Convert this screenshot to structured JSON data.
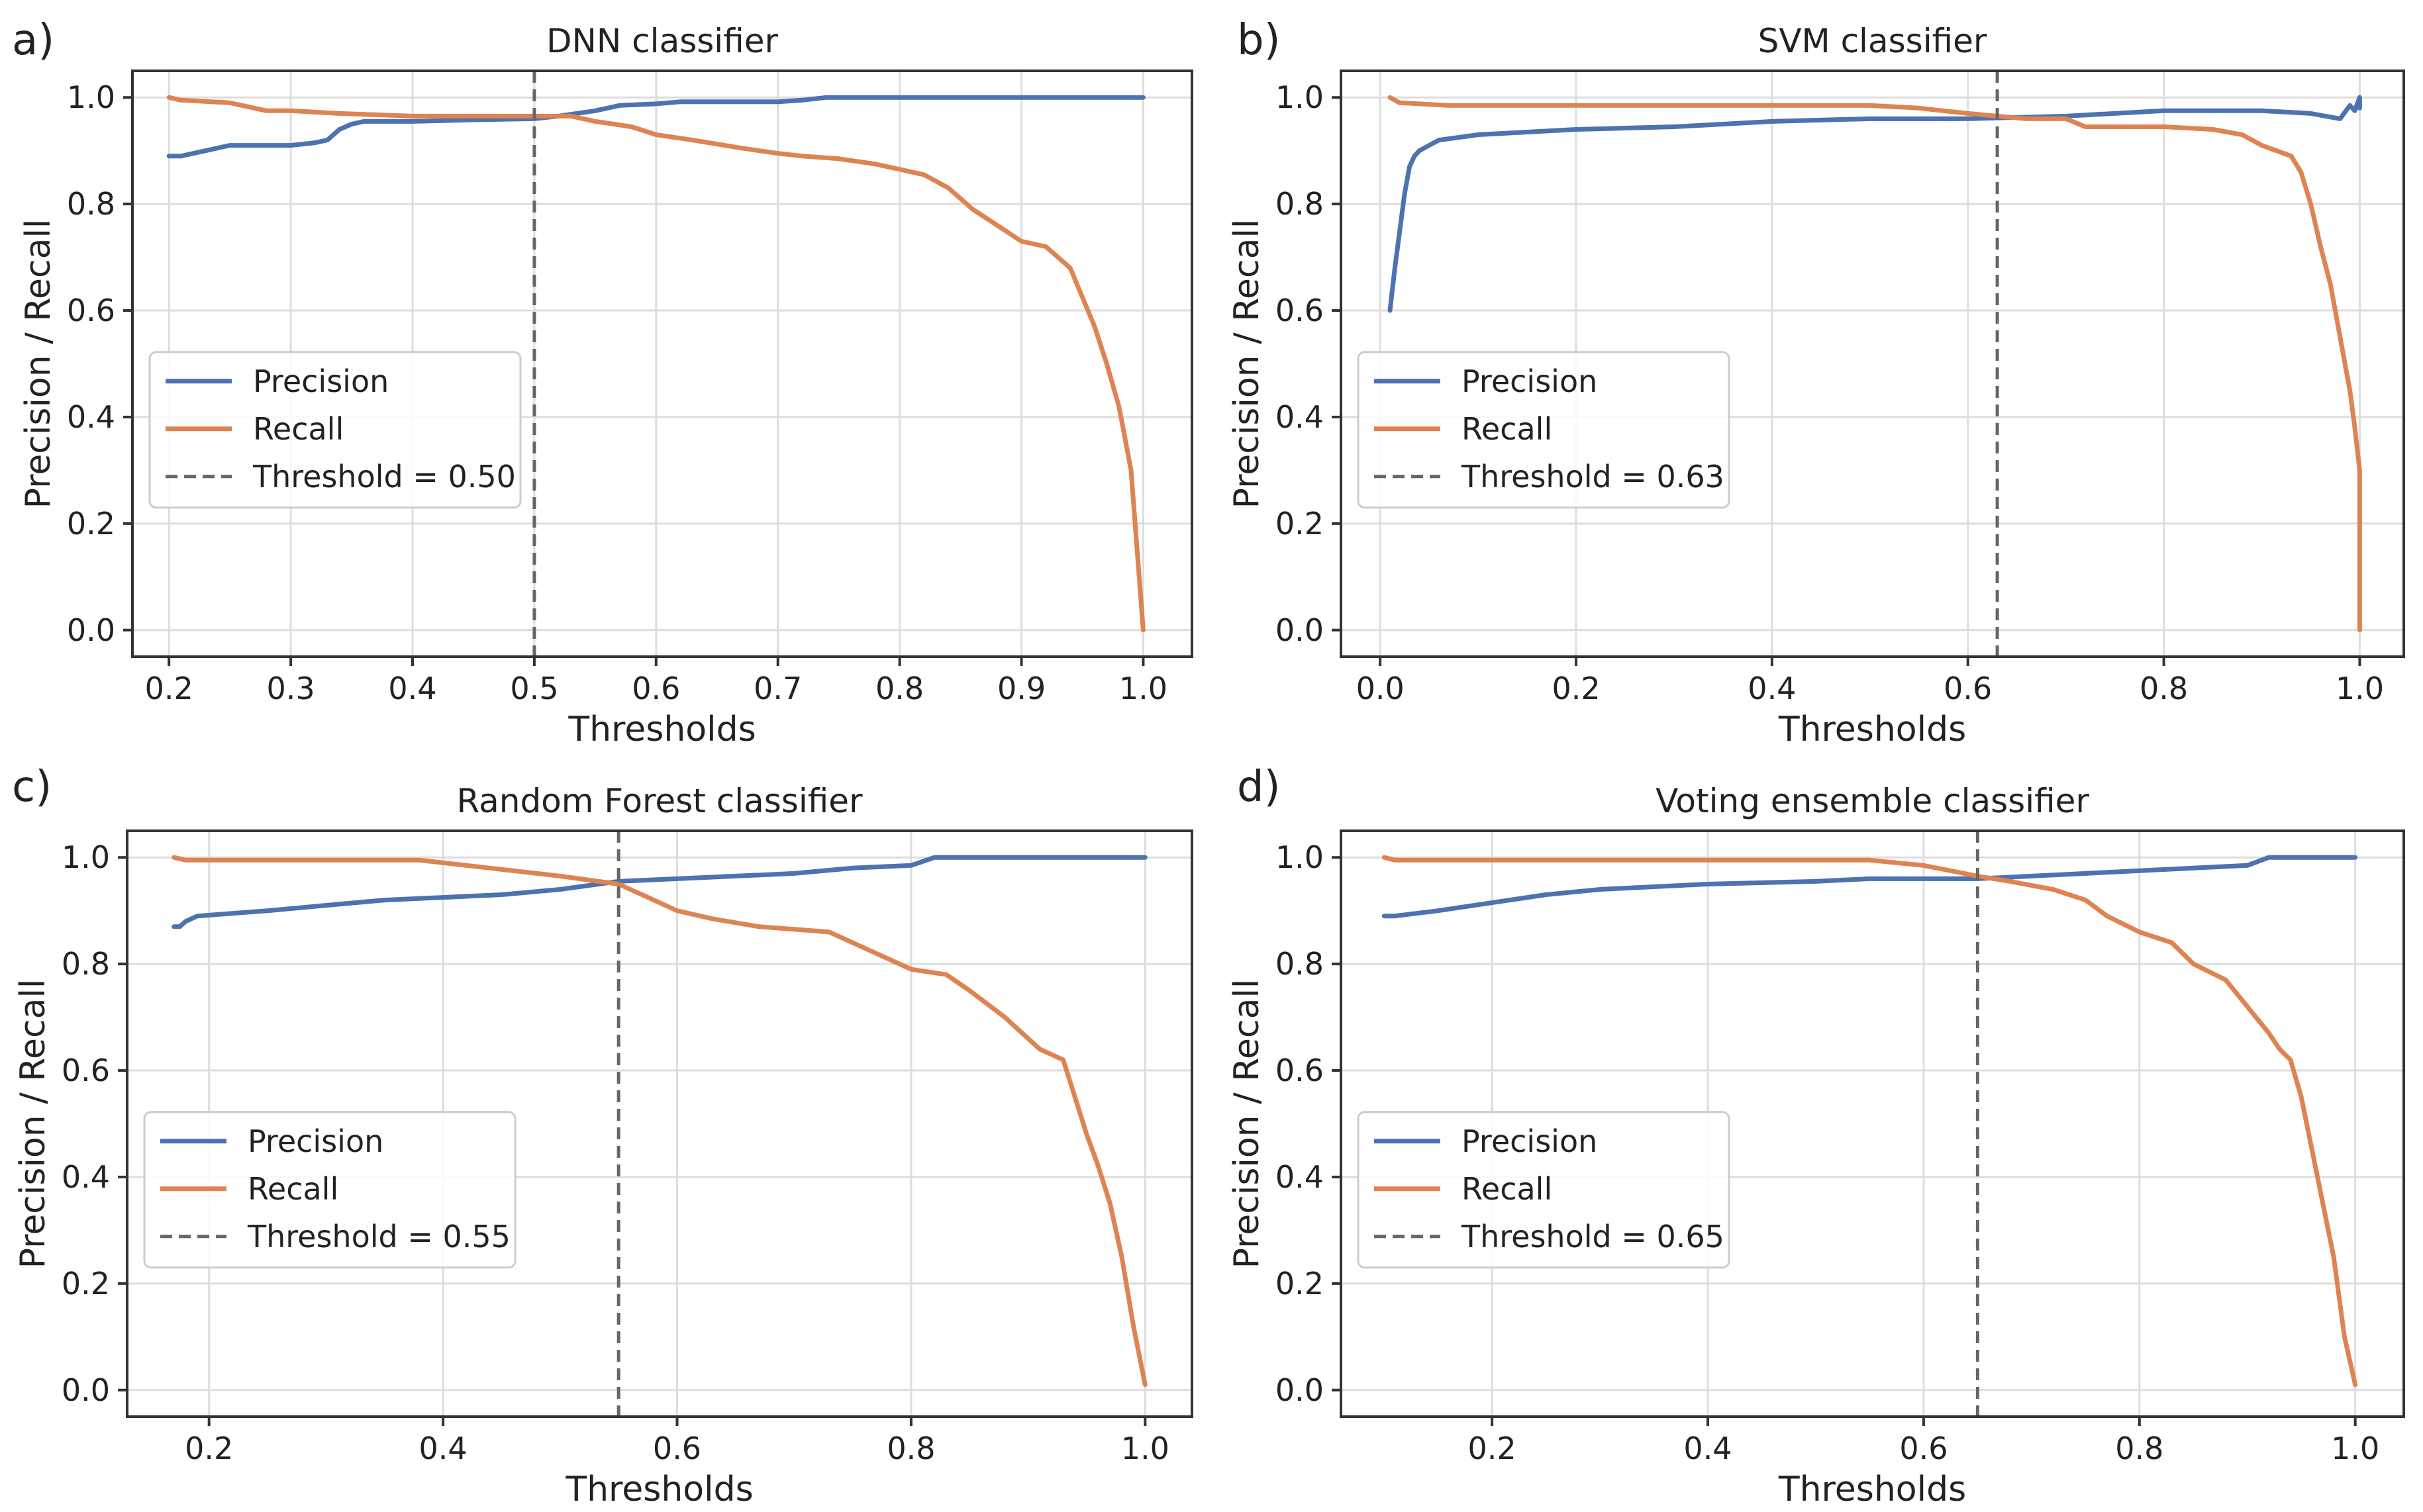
{
  "colors": {
    "precision": "#4c72b0",
    "recall": "#dd8452",
    "threshold": "#666666",
    "grid": "#dddddd",
    "frame": "#333333"
  },
  "chart_data": [
    {
      "panel_label": "a)",
      "type": "line",
      "title": "DNN classifier",
      "xlabel": "Thresholds",
      "ylabel": "Precision / Recall",
      "xlim": [
        0.17,
        1.04
      ],
      "ylim": [
        -0.05,
        1.05
      ],
      "xticks": [
        0.2,
        0.3,
        0.4,
        0.5,
        0.6,
        0.7,
        0.8,
        0.9,
        1.0
      ],
      "xtick_labels": [
        "0.2",
        "0.3",
        "0.4",
        "0.5",
        "0.6",
        "0.7",
        "0.8",
        "0.9",
        "1.0"
      ],
      "yticks": [
        0.0,
        0.2,
        0.4,
        0.6,
        0.8,
        1.0
      ],
      "ytick_labels": [
        "0.0",
        "0.2",
        "0.4",
        "0.6",
        "0.8",
        "1.0"
      ],
      "grid": true,
      "legend_position": "center-left",
      "threshold": {
        "value": 0.5,
        "label": "Threshold = 0.50"
      },
      "series": [
        {
          "name": "Precision",
          "x": [
            0.2,
            0.21,
            0.23,
            0.25,
            0.28,
            0.3,
            0.32,
            0.33,
            0.34,
            0.35,
            0.36,
            0.4,
            0.45,
            0.5,
            0.52,
            0.55,
            0.57,
            0.6,
            0.62,
            0.65,
            0.7,
            0.72,
            0.74,
            0.8,
            0.9,
            1.0
          ],
          "y": [
            0.89,
            0.89,
            0.9,
            0.91,
            0.91,
            0.91,
            0.915,
            0.92,
            0.94,
            0.95,
            0.955,
            0.955,
            0.958,
            0.96,
            0.965,
            0.975,
            0.985,
            0.988,
            0.992,
            0.992,
            0.992,
            0.995,
            1.0,
            1.0,
            1.0,
            1.0
          ]
        },
        {
          "name": "Recall",
          "x": [
            0.2,
            0.21,
            0.25,
            0.28,
            0.3,
            0.34,
            0.4,
            0.45,
            0.5,
            0.53,
            0.55,
            0.58,
            0.6,
            0.63,
            0.67,
            0.7,
            0.72,
            0.75,
            0.78,
            0.8,
            0.82,
            0.84,
            0.86,
            0.88,
            0.9,
            0.92,
            0.94,
            0.96,
            0.97,
            0.98,
            0.985,
            0.99,
            0.995,
            1.0
          ],
          "y": [
            1.0,
            0.995,
            0.99,
            0.975,
            0.975,
            0.97,
            0.965,
            0.965,
            0.965,
            0.965,
            0.955,
            0.945,
            0.93,
            0.92,
            0.905,
            0.895,
            0.89,
            0.885,
            0.875,
            0.865,
            0.855,
            0.83,
            0.79,
            0.76,
            0.73,
            0.72,
            0.68,
            0.57,
            0.5,
            0.42,
            0.36,
            0.3,
            0.15,
            0.0
          ]
        }
      ]
    },
    {
      "panel_label": "b)",
      "type": "line",
      "title": "SVM classifier",
      "xlabel": "Thresholds",
      "ylabel": "Precision / Recall",
      "xlim": [
        -0.04,
        1.045
      ],
      "ylim": [
        -0.05,
        1.05
      ],
      "xticks": [
        0.0,
        0.2,
        0.4,
        0.6,
        0.8,
        1.0
      ],
      "xtick_labels": [
        "0.0",
        "0.2",
        "0.4",
        "0.6",
        "0.8",
        "1.0"
      ],
      "yticks": [
        0.0,
        0.2,
        0.4,
        0.6,
        0.8,
        1.0
      ],
      "ytick_labels": [
        "0.0",
        "0.2",
        "0.4",
        "0.6",
        "0.8",
        "1.0"
      ],
      "grid": true,
      "legend_position": "center-left",
      "threshold": {
        "value": 0.63,
        "label": "Threshold = 0.63"
      },
      "series": [
        {
          "name": "Precision",
          "x": [
            0.01,
            0.015,
            0.02,
            0.025,
            0.03,
            0.035,
            0.04,
            0.05,
            0.06,
            0.08,
            0.1,
            0.15,
            0.2,
            0.3,
            0.4,
            0.5,
            0.6,
            0.7,
            0.8,
            0.9,
            0.95,
            0.98,
            0.99,
            0.995,
            1.0,
            1.0
          ],
          "y": [
            0.6,
            0.68,
            0.75,
            0.82,
            0.87,
            0.89,
            0.9,
            0.91,
            0.92,
            0.925,
            0.93,
            0.935,
            0.94,
            0.945,
            0.955,
            0.96,
            0.96,
            0.965,
            0.975,
            0.975,
            0.97,
            0.96,
            0.985,
            0.975,
            1.0,
            0.98
          ]
        },
        {
          "name": "Recall",
          "x": [
            0.01,
            0.02,
            0.07,
            0.1,
            0.2,
            0.4,
            0.5,
            0.55,
            0.6,
            0.63,
            0.66,
            0.7,
            0.72,
            0.8,
            0.85,
            0.88,
            0.9,
            0.93,
            0.94,
            0.95,
            0.96,
            0.97,
            0.98,
            0.99,
            0.995,
            1.0,
            1.0
          ],
          "y": [
            1.0,
            0.99,
            0.985,
            0.985,
            0.985,
            0.985,
            0.985,
            0.98,
            0.97,
            0.965,
            0.96,
            0.96,
            0.945,
            0.945,
            0.94,
            0.93,
            0.91,
            0.89,
            0.86,
            0.8,
            0.72,
            0.65,
            0.55,
            0.45,
            0.38,
            0.3,
            0.0
          ]
        }
      ]
    },
    {
      "panel_label": "c)",
      "type": "line",
      "title": "Random Forest classifier",
      "xlabel": "Thresholds",
      "ylabel": "Precision / Recall",
      "xlim": [
        0.13,
        1.04
      ],
      "ylim": [
        -0.05,
        1.05
      ],
      "xticks": [
        0.2,
        0.4,
        0.6,
        0.8,
        1.0
      ],
      "xtick_labels": [
        "0.2",
        "0.4",
        "0.6",
        "0.8",
        "1.0"
      ],
      "yticks": [
        0.0,
        0.2,
        0.4,
        0.6,
        0.8,
        1.0
      ],
      "ytick_labels": [
        "0.0",
        "0.2",
        "0.4",
        "0.6",
        "0.8",
        "1.0"
      ],
      "grid": true,
      "legend_position": "center-left",
      "threshold": {
        "value": 0.55,
        "label": "Threshold = 0.55"
      },
      "series": [
        {
          "name": "Precision",
          "x": [
            0.17,
            0.175,
            0.18,
            0.19,
            0.25,
            0.3,
            0.35,
            0.4,
            0.45,
            0.5,
            0.55,
            0.6,
            0.65,
            0.7,
            0.75,
            0.8,
            0.82,
            0.85,
            0.9,
            1.0
          ],
          "y": [
            0.87,
            0.87,
            0.88,
            0.89,
            0.9,
            0.91,
            0.92,
            0.925,
            0.93,
            0.94,
            0.955,
            0.96,
            0.965,
            0.97,
            0.98,
            0.985,
            1.0,
            1.0,
            1.0,
            1.0
          ]
        },
        {
          "name": "Recall",
          "x": [
            0.17,
            0.18,
            0.25,
            0.38,
            0.42,
            0.46,
            0.5,
            0.55,
            0.58,
            0.6,
            0.63,
            0.67,
            0.7,
            0.73,
            0.76,
            0.78,
            0.8,
            0.83,
            0.85,
            0.88,
            0.9,
            0.91,
            0.92,
            0.93,
            0.94,
            0.95,
            0.96,
            0.97,
            0.98,
            0.99,
            1.0
          ],
          "y": [
            1.0,
            0.995,
            0.995,
            0.995,
            0.985,
            0.975,
            0.965,
            0.95,
            0.92,
            0.9,
            0.885,
            0.87,
            0.865,
            0.86,
            0.83,
            0.81,
            0.79,
            0.78,
            0.75,
            0.7,
            0.66,
            0.64,
            0.63,
            0.62,
            0.55,
            0.48,
            0.42,
            0.35,
            0.25,
            0.12,
            0.01
          ]
        }
      ]
    },
    {
      "panel_label": "d)",
      "type": "line",
      "title": "Voting ensemble classifier",
      "xlabel": "Thresholds",
      "ylabel": "Precision / Recall",
      "xlim": [
        0.06,
        1.045
      ],
      "ylim": [
        -0.05,
        1.05
      ],
      "xticks": [
        0.2,
        0.4,
        0.6,
        0.8,
        1.0
      ],
      "xtick_labels": [
        "0.2",
        "0.4",
        "0.6",
        "0.8",
        "1.0"
      ],
      "yticks": [
        0.0,
        0.2,
        0.4,
        0.6,
        0.8,
        1.0
      ],
      "ytick_labels": [
        "0.0",
        "0.2",
        "0.4",
        "0.6",
        "0.8",
        "1.0"
      ],
      "grid": true,
      "legend_position": "center-left",
      "threshold": {
        "value": 0.65,
        "label": "Threshold = 0.65"
      },
      "series": [
        {
          "name": "Precision",
          "x": [
            0.1,
            0.11,
            0.15,
            0.2,
            0.25,
            0.3,
            0.35,
            0.4,
            0.5,
            0.55,
            0.6,
            0.65,
            0.7,
            0.75,
            0.8,
            0.85,
            0.9,
            0.92,
            0.95,
            1.0
          ],
          "y": [
            0.89,
            0.89,
            0.9,
            0.915,
            0.93,
            0.94,
            0.945,
            0.95,
            0.955,
            0.96,
            0.96,
            0.96,
            0.965,
            0.97,
            0.975,
            0.98,
            0.985,
            1.0,
            1.0,
            1.0
          ]
        },
        {
          "name": "Recall",
          "x": [
            0.1,
            0.11,
            0.2,
            0.4,
            0.55,
            0.6,
            0.65,
            0.68,
            0.72,
            0.75,
            0.77,
            0.8,
            0.83,
            0.85,
            0.88,
            0.9,
            0.92,
            0.93,
            0.94,
            0.95,
            0.96,
            0.97,
            0.98,
            0.99,
            1.0
          ],
          "y": [
            1.0,
            0.995,
            0.995,
            0.995,
            0.995,
            0.985,
            0.965,
            0.955,
            0.94,
            0.92,
            0.89,
            0.86,
            0.84,
            0.8,
            0.77,
            0.72,
            0.67,
            0.64,
            0.62,
            0.55,
            0.45,
            0.35,
            0.25,
            0.1,
            0.01
          ]
        }
      ]
    }
  ]
}
